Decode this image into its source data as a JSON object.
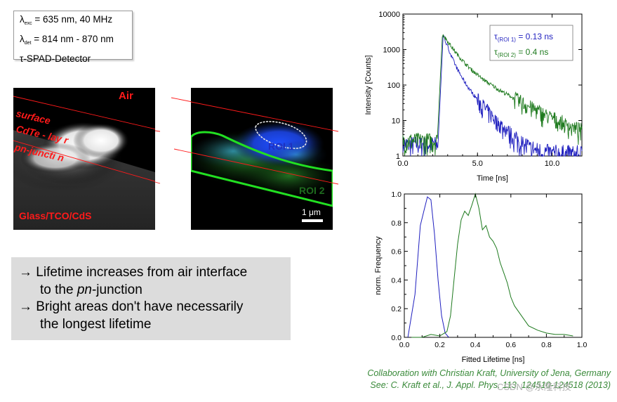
{
  "info": {
    "line1_symbol": "λ",
    "line1_sub": "exc",
    "line1_text": " = 635 nm, 40 MHz",
    "line2_symbol": "λ",
    "line2_sub": "det",
    "line2_text": " = 814 nm - 870 nm",
    "line3": "τ-SPAD-Detector"
  },
  "left_image": {
    "label_air": "Air",
    "label_surface": "surface",
    "label_cdte": "CdTe - lay r",
    "label_pn": "pn-juncti n",
    "label_glass": "Glass/TCO/CdS"
  },
  "right_image": {
    "roi1": "ROI 1",
    "roi2": "ROI 2",
    "scalebar": "1 μm"
  },
  "summary": {
    "line1": "→ Lifetime increases from air interface",
    "line2_a": "to the ",
    "line2_b": "pn",
    "line2_c": "-junction",
    "line3": "→ Bright areas don't have necessarily",
    "line4": "the longest lifetime"
  },
  "citation": {
    "line1": "Collaboration with Christian Kraft, University of Jena, Germany",
    "line2": "See: C. Kraft et al., J. Appl. Phys. 113, 124510-124518 (2013)"
  },
  "watermark": "CSDN @永隆科技",
  "colors": {
    "roi1": "#1f1fbf",
    "roi2": "#1e7a1e",
    "overlay_red": "#ff1a1a"
  },
  "chart_data": [
    {
      "type": "line",
      "xlabel": "Time [ns]",
      "ylabel": "Intensity [Counts]",
      "xlim": [
        0,
        12
      ],
      "ylim_log": [
        1,
        10000
      ],
      "xticks": [
        "0.0",
        "5.0",
        "10.0"
      ],
      "xtick_values": [
        0,
        5,
        10
      ],
      "yticks": [
        "1",
        "10",
        "100",
        "1000",
        "10000"
      ],
      "ytick_values": [
        1,
        10,
        100,
        1000,
        10000
      ],
      "legend": [
        {
          "label": "τ(ROI 1) = 0.13 ns",
          "color": "#1f1fbf"
        },
        {
          "label": "τ(ROI 2) = 0.4 ns",
          "color": "#1e7a1e"
        }
      ],
      "series": [
        {
          "name": "ROI 1",
          "color": "#1f1fbf",
          "peak_time": 2.7,
          "peak": 2600,
          "tau": 0.33,
          "tau_tail": 0.9,
          "noise_floor": 2
        },
        {
          "name": "ROI 2",
          "color": "#1e7a1e",
          "peak_time": 2.65,
          "peak": 2800,
          "tau": 0.6,
          "tau_tail": 1.9,
          "noise_floor": 2.5
        }
      ]
    },
    {
      "type": "line",
      "xlabel": "Fitted Lifetime [ns]",
      "ylabel": "norm. Frequency",
      "xlim": [
        0,
        1
      ],
      "ylim": [
        0,
        1
      ],
      "xticks": [
        "0.0",
        "0.2",
        "0.4",
        "0.6",
        "0.8",
        "1.0"
      ],
      "xtick_values": [
        0,
        0.2,
        0.4,
        0.6,
        0.8,
        1.0
      ],
      "yticks": [
        "0.0",
        "0.2",
        "0.4",
        "0.6",
        "0.8",
        "1.0"
      ],
      "ytick_values": [
        0,
        0.2,
        0.4,
        0.6,
        0.8,
        1.0
      ],
      "series": [
        {
          "name": "ROI 1",
          "color": "#1f1fbf",
          "x": [
            0.02,
            0.06,
            0.09,
            0.11,
            0.13,
            0.15,
            0.17,
            0.19,
            0.21,
            0.23,
            0.25
          ],
          "y": [
            0.0,
            0.3,
            0.78,
            0.88,
            0.98,
            0.96,
            0.72,
            0.4,
            0.15,
            0.03,
            0.0
          ]
        },
        {
          "name": "ROI 2",
          "color": "#1e7a1e",
          "x": [
            0.04,
            0.1,
            0.15,
            0.2,
            0.24,
            0.26,
            0.28,
            0.3,
            0.32,
            0.34,
            0.36,
            0.38,
            0.4,
            0.42,
            0.44,
            0.46,
            0.48,
            0.5,
            0.52,
            0.54,
            0.56,
            0.58,
            0.6,
            0.62,
            0.66,
            0.7,
            0.75,
            0.8,
            0.85,
            0.9,
            0.95
          ],
          "y": [
            0.0,
            0.0,
            0.02,
            0.01,
            0.04,
            0.15,
            0.4,
            0.65,
            0.82,
            0.88,
            0.85,
            0.92,
            1.0,
            0.9,
            0.75,
            0.78,
            0.7,
            0.67,
            0.62,
            0.52,
            0.45,
            0.38,
            0.28,
            0.22,
            0.15,
            0.08,
            0.05,
            0.03,
            0.02,
            0.02,
            0.01
          ]
        }
      ]
    }
  ]
}
